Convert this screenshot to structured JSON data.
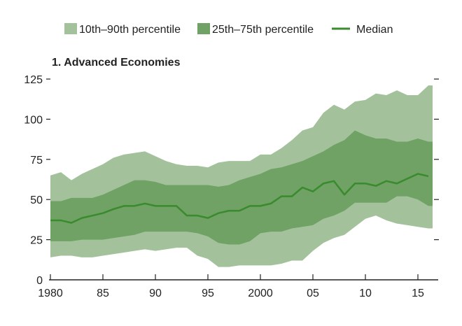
{
  "chart_data": {
    "type": "area",
    "title": "1. Advanced Economies",
    "xlabel": "",
    "ylabel": "",
    "xlim": [
      1980,
      2016.4
    ],
    "ylim": [
      0,
      125
    ],
    "grid": false,
    "legend_position": "top",
    "x_ticks": [
      1980,
      1985,
      1990,
      1995,
      2000,
      2005,
      2010,
      2015
    ],
    "x_tick_labels": [
      "1980",
      "85",
      "90",
      "95",
      "2000",
      "05",
      "10",
      "15"
    ],
    "y_ticks": [
      0,
      25,
      50,
      75,
      100,
      125
    ],
    "y_tick_labels": [
      "0",
      "25",
      "50",
      "75",
      "100",
      "125"
    ],
    "x": [
      1980,
      1981,
      1982,
      1983,
      1984,
      1985,
      1986,
      1987,
      1988,
      1989,
      1990,
      1991,
      1992,
      1993,
      1994,
      1995,
      1996,
      1997,
      1998,
      1999,
      2000,
      2001,
      2002,
      2003,
      2004,
      2005,
      2006,
      2007,
      2008,
      2009,
      2010,
      2011,
      2012,
      2013,
      2014,
      2015,
      2016
    ],
    "series": [
      {
        "name": "10th–90th percentile",
        "kind": "band",
        "color": "#a3c29b",
        "lower": [
          14,
          15,
          15,
          14,
          14,
          15,
          16,
          17,
          18,
          19,
          18,
          19,
          20,
          20,
          15,
          13,
          8,
          8,
          9,
          9,
          9,
          9,
          10,
          12,
          12,
          18,
          23,
          26,
          28,
          33,
          38,
          40,
          37,
          35,
          34,
          33,
          32
        ],
        "upper": [
          65,
          67,
          62,
          66,
          69,
          72,
          76,
          78,
          79,
          80,
          77,
          74,
          72,
          71,
          71,
          70,
          73,
          74,
          74,
          74,
          78,
          78,
          82,
          87,
          93,
          95,
          104,
          109,
          106,
          111,
          112,
          116,
          115,
          118,
          115,
          115,
          121
        ]
      },
      {
        "name": "25th–75th percentile",
        "kind": "band",
        "color": "#6fa264",
        "lower": [
          24,
          24,
          24,
          25,
          25,
          25,
          26,
          27,
          28,
          30,
          30,
          30,
          30,
          30,
          29,
          27,
          23,
          22,
          22,
          24,
          29,
          30,
          30,
          32,
          33,
          34,
          38,
          40,
          43,
          48,
          48,
          48,
          48,
          52,
          52,
          50,
          46
        ],
        "upper": [
          49,
          49,
          51,
          51,
          51,
          53,
          56,
          59,
          62,
          62,
          61,
          59,
          59,
          59,
          59,
          59,
          58,
          59,
          62,
          64,
          66,
          69,
          70,
          72,
          74,
          77,
          80,
          84,
          87,
          93,
          90,
          88,
          88,
          86,
          86,
          88,
          86
        ]
      },
      {
        "name": "Median",
        "kind": "line",
        "color": "#3a8a2e",
        "values": [
          37,
          37,
          35.5,
          38.5,
          40,
          41.5,
          44,
          46,
          46,
          47.5,
          46,
          46,
          46,
          40,
          40,
          38.5,
          41.5,
          43,
          43,
          46,
          46,
          47.5,
          52,
          52,
          57.5,
          55,
          60,
          61.5,
          53,
          60,
          60,
          58.5,
          61.5,
          60,
          63,
          66,
          64.5
        ]
      }
    ]
  }
}
